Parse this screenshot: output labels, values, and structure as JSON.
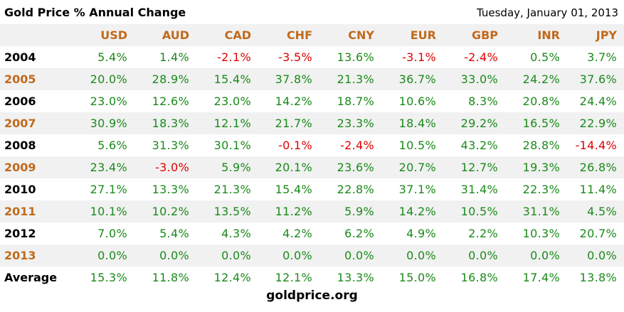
{
  "header": {
    "title": "Gold Price % Annual Change",
    "date": "Tuesday, January 01, 2013"
  },
  "colors": {
    "positive": "#1a8a1a",
    "negative": "#e00000",
    "accent": "#c06a1c",
    "band": "#f1f1f1"
  },
  "chart_data": {
    "type": "table",
    "title": "Gold Price % Annual Change",
    "columns": [
      "USD",
      "AUD",
      "CAD",
      "CHF",
      "CNY",
      "EUR",
      "GBP",
      "INR",
      "JPY"
    ],
    "rows": [
      {
        "label": "2004",
        "values": [
          "5.4%",
          "1.4%",
          "-2.1%",
          "-3.5%",
          "13.6%",
          "-3.1%",
          "-2.4%",
          "0.5%",
          "3.7%"
        ]
      },
      {
        "label": "2005",
        "values": [
          "20.0%",
          "28.9%",
          "15.4%",
          "37.8%",
          "21.3%",
          "36.7%",
          "33.0%",
          "24.2%",
          "37.6%"
        ]
      },
      {
        "label": "2006",
        "values": [
          "23.0%",
          "12.6%",
          "23.0%",
          "14.2%",
          "18.7%",
          "10.6%",
          "8.3%",
          "20.8%",
          "24.4%"
        ]
      },
      {
        "label": "2007",
        "values": [
          "30.9%",
          "18.3%",
          "12.1%",
          "21.7%",
          "23.3%",
          "18.4%",
          "29.2%",
          "16.5%",
          "22.9%"
        ]
      },
      {
        "label": "2008",
        "values": [
          "5.6%",
          "31.3%",
          "30.1%",
          "-0.1%",
          "-2.4%",
          "10.5%",
          "43.2%",
          "28.8%",
          "-14.4%"
        ]
      },
      {
        "label": "2009",
        "values": [
          "23.4%",
          "-3.0%",
          "5.9%",
          "20.1%",
          "23.6%",
          "20.7%",
          "12.7%",
          "19.3%",
          "26.8%"
        ]
      },
      {
        "label": "2010",
        "values": [
          "27.1%",
          "13.3%",
          "21.3%",
          "15.4%",
          "22.8%",
          "37.1%",
          "31.4%",
          "22.3%",
          "11.4%"
        ]
      },
      {
        "label": "2011",
        "values": [
          "10.1%",
          "10.2%",
          "13.5%",
          "11.2%",
          "5.9%",
          "14.2%",
          "10.5%",
          "31.1%",
          "4.5%"
        ]
      },
      {
        "label": "2012",
        "values": [
          "7.0%",
          "5.4%",
          "4.3%",
          "4.2%",
          "6.2%",
          "4.9%",
          "2.2%",
          "10.3%",
          "20.7%"
        ]
      },
      {
        "label": "2013",
        "values": [
          "0.0%",
          "0.0%",
          "0.0%",
          "0.0%",
          "0.0%",
          "0.0%",
          "0.0%",
          "0.0%",
          "0.0%"
        ]
      },
      {
        "label": "Average",
        "values": [
          "15.3%",
          "11.8%",
          "12.4%",
          "12.1%",
          "13.3%",
          "15.0%",
          "16.8%",
          "17.4%",
          "13.8%"
        ]
      }
    ]
  },
  "footer": {
    "source": "goldprice.org"
  }
}
